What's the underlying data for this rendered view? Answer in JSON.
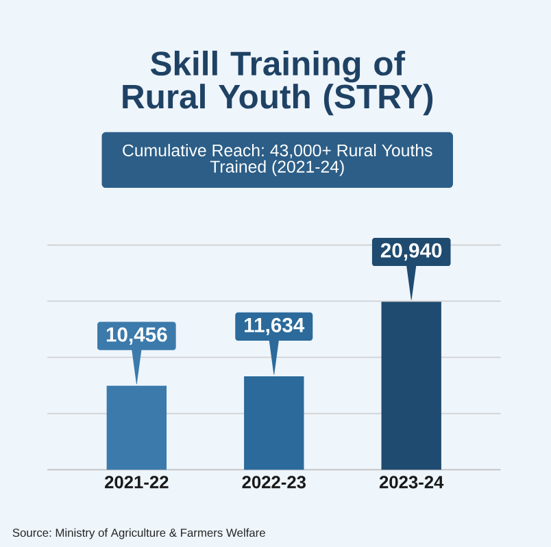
{
  "chart_data": {
    "type": "bar",
    "title": "Skill Training of Rural Youth (STRY)",
    "subtitle": "Cumulative Reach: 43,000+ Rural Youths Trained (2021-24)",
    "categories": [
      "2021-22",
      "2022-23",
      "2023-24"
    ],
    "values": [
      10456,
      11634,
      20940
    ],
    "value_labels": [
      "10,456",
      "11,634",
      "20,940"
    ],
    "colors": [
      "#3b7aab",
      "#2b6a9b",
      "#1f4b70"
    ],
    "ylim": [
      0,
      28000
    ],
    "yticks": [
      {
        "value": 7000,
        "label": null
      },
      {
        "value": 14000,
        "label": null
      },
      {
        "value": 21000,
        "label": null
      },
      {
        "value": 28000,
        "label": null
      }
    ],
    "grid": "y",
    "tick_labels": "x",
    "annotations": [
      "Source: Ministry of Agriculture & Farmers Welfare"
    ]
  }
}
